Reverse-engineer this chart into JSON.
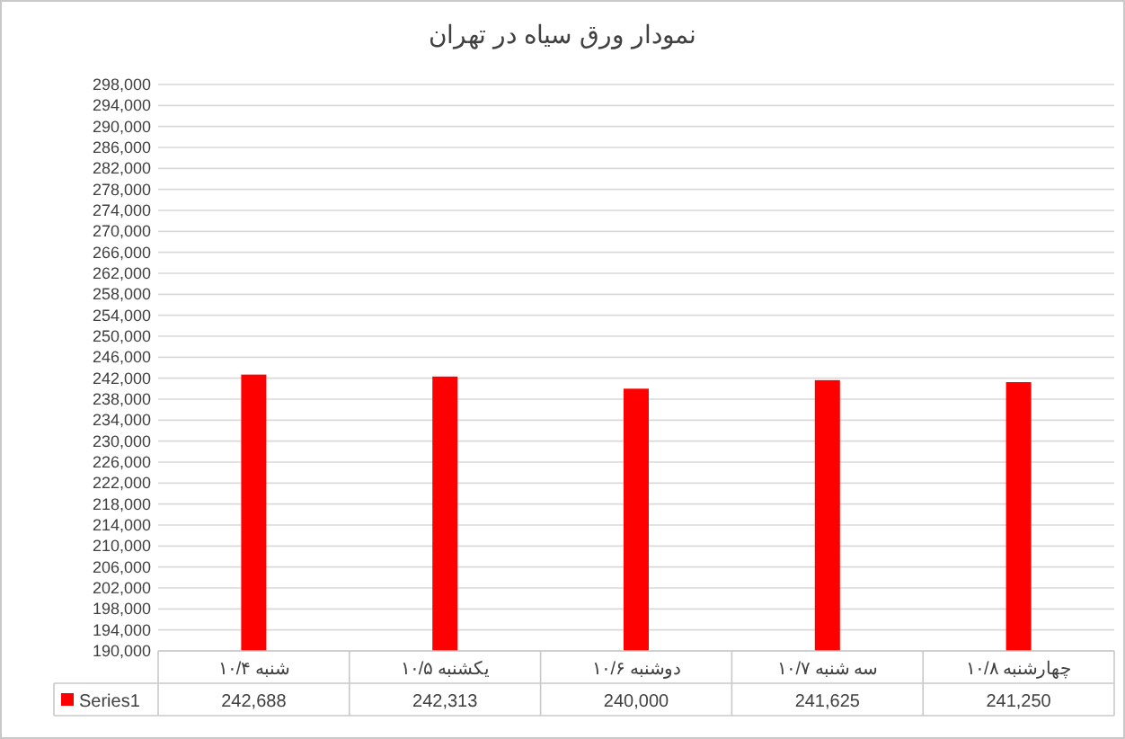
{
  "chart_data": {
    "type": "bar",
    "title": "نمودار ورق سیاه در تهران",
    "categories": [
      "شنبه ۱۰/۴",
      "یکشنبه ۱۰/۵",
      "دوشنبه ۱۰/۶",
      "سه شنبه ۱۰/۷",
      "چهارشنبه ۱۰/۸"
    ],
    "series": [
      {
        "name": "Series1",
        "color": "#ff0000",
        "values": [
          242688,
          242313,
          240000,
          241625,
          241250
        ],
        "value_labels": [
          "242,688",
          "242,313",
          "240,000",
          "241,625",
          "241,250"
        ]
      }
    ],
    "ylim": [
      190000,
      298000
    ],
    "yticks": [
      {
        "value": 190000,
        "label": "190,000"
      },
      {
        "value": 194000,
        "label": "194,000"
      },
      {
        "value": 198000,
        "label": "198,000"
      },
      {
        "value": 202000,
        "label": "202,000"
      },
      {
        "value": 206000,
        "label": "206,000"
      },
      {
        "value": 210000,
        "label": "210,000"
      },
      {
        "value": 214000,
        "label": "214,000"
      },
      {
        "value": 218000,
        "label": "218,000"
      },
      {
        "value": 222000,
        "label": "222,000"
      },
      {
        "value": 226000,
        "label": "226,000"
      },
      {
        "value": 230000,
        "label": "230,000"
      },
      {
        "value": 234000,
        "label": "234,000"
      },
      {
        "value": 238000,
        "label": "238,000"
      },
      {
        "value": 242000,
        "label": "242,000"
      },
      {
        "value": 246000,
        "label": "246,000"
      },
      {
        "value": 250000,
        "label": "250,000"
      },
      {
        "value": 254000,
        "label": "254,000"
      },
      {
        "value": 258000,
        "label": "258,000"
      },
      {
        "value": 262000,
        "label": "262,000"
      },
      {
        "value": 266000,
        "label": "266,000"
      },
      {
        "value": 270000,
        "label": "270,000"
      },
      {
        "value": 274000,
        "label": "274,000"
      },
      {
        "value": 278000,
        "label": "278,000"
      },
      {
        "value": 282000,
        "label": "282,000"
      },
      {
        "value": 286000,
        "label": "286,000"
      },
      {
        "value": 290000,
        "label": "290,000"
      },
      {
        "value": 294000,
        "label": "294,000"
      },
      {
        "value": 298000,
        "label": "298,000"
      }
    ],
    "grid": "y",
    "legend": "bottom"
  }
}
